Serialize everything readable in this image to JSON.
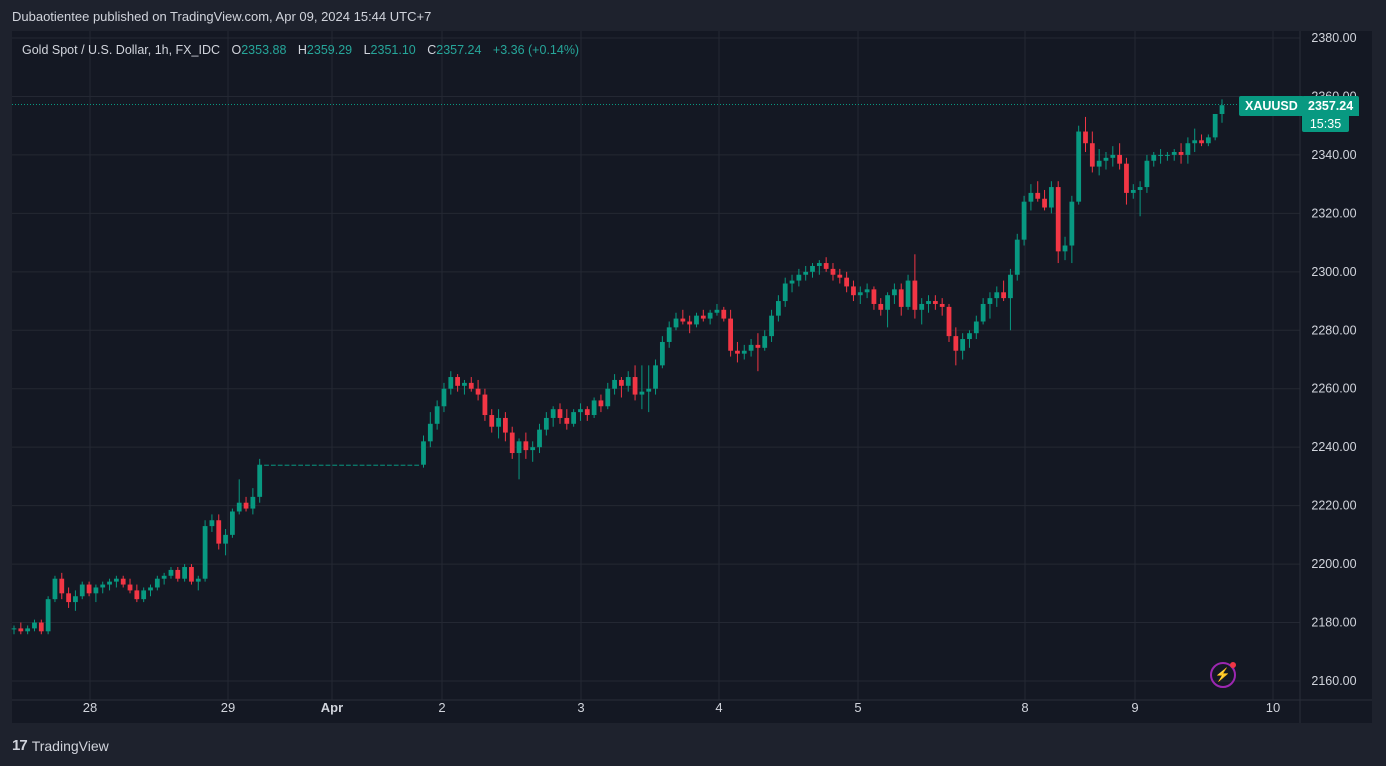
{
  "header": {
    "publish_line": "Dubaotientee published on TradingView.com, Apr 09, 2024 15:44 UTC+7"
  },
  "legend": {
    "symbol_line": "Gold Spot / U.S. Dollar, 1h, FX_IDC",
    "o_label": "O",
    "o_value": "2353.88",
    "h_label": "H",
    "h_value": "2359.29",
    "l_label": "L",
    "l_value": "2351.10",
    "c_label": "C",
    "c_value": "2357.24",
    "change": "+3.36 (+0.14%)"
  },
  "price_badge": {
    "ticker": "XAUUSD",
    "price": "2357.24",
    "countdown": "15:35"
  },
  "footer": {
    "logo": "17",
    "brand": "TradingView"
  },
  "icons": {
    "alert": "lightning-bolt-icon",
    "logo": "tradingview-logo-icon"
  },
  "colors": {
    "background": "#1e222d",
    "pane": "#141823",
    "up": "#089981",
    "down": "#f23645",
    "grid": "#242833",
    "text": "#d1d4dc"
  },
  "chart_data": {
    "type": "candlestick",
    "title": "Gold Spot / U.S. Dollar, 1h, FX_IDC",
    "xlabel": "",
    "ylabel": "",
    "ylim": [
      2155,
      2385
    ],
    "y_ticks": [
      "2160.00",
      "2180.00",
      "2200.00",
      "2220.00",
      "2240.00",
      "2260.00",
      "2280.00",
      "2300.00",
      "2320.00",
      "2340.00",
      "2360.00",
      "2380.00"
    ],
    "x_ticks": [
      "28",
      "29",
      "Apr",
      "2",
      "3",
      "4",
      "5",
      "8",
      "9",
      "10"
    ],
    "grid": true,
    "last_price": 2357.24,
    "series": [
      {
        "name": "XAUUSD",
        "ohlc": [
          [
            2178,
            2179,
            2176,
            2178
          ],
          [
            2178,
            2180,
            2176,
            2177
          ],
          [
            2177,
            2179,
            2176,
            2178
          ],
          [
            2178,
            2181,
            2177,
            2180
          ],
          [
            2180,
            2181,
            2176,
            2177
          ],
          [
            2177,
            2189,
            2176,
            2188
          ],
          [
            2188,
            2196,
            2187,
            2195
          ],
          [
            2195,
            2197,
            2188,
            2190
          ],
          [
            2190,
            2192,
            2185,
            2187
          ],
          [
            2187,
            2191,
            2184,
            2189
          ],
          [
            2189,
            2194,
            2188,
            2193
          ],
          [
            2193,
            2194,
            2189,
            2190
          ],
          [
            2190,
            2193,
            2187,
            2192
          ],
          [
            2192,
            2194,
            2190,
            2193
          ],
          [
            2193,
            2195,
            2191,
            2194
          ],
          [
            2194,
            2196,
            2192,
            2195
          ],
          [
            2195,
            2196,
            2192,
            2193
          ],
          [
            2193,
            2195,
            2190,
            2191
          ],
          [
            2191,
            2193,
            2187,
            2188
          ],
          [
            2188,
            2192,
            2187,
            2191
          ],
          [
            2191,
            2193,
            2189,
            2192
          ],
          [
            2192,
            2196,
            2191,
            2195
          ],
          [
            2195,
            2197,
            2193,
            2196
          ],
          [
            2196,
            2199,
            2195,
            2198
          ],
          [
            2198,
            2199,
            2194,
            2195
          ],
          [
            2195,
            2200,
            2194,
            2199
          ],
          [
            2199,
            2200,
            2193,
            2194
          ],
          [
            2194,
            2196,
            2191,
            2195
          ],
          [
            2195,
            2215,
            2194,
            2213
          ],
          [
            2213,
            2217,
            2211,
            2215
          ],
          [
            2215,
            2217,
            2205,
            2207
          ],
          [
            2207,
            2212,
            2203,
            2210
          ],
          [
            2210,
            2219,
            2209,
            2218
          ],
          [
            2218,
            2229,
            2217,
            2221
          ],
          [
            2221,
            2223,
            2218,
            2219
          ],
          [
            2219,
            2226,
            2217,
            2223
          ],
          [
            2223,
            2236,
            2221,
            2234
          ],
          [
            2234,
            2234,
            2234,
            2234
          ],
          [
            2234,
            2234,
            2234,
            2234
          ],
          [
            2234,
            2234,
            2234,
            2234
          ],
          [
            2234,
            2234,
            2234,
            2234
          ],
          [
            2234,
            2234,
            2234,
            2234
          ],
          [
            2234,
            2234,
            2234,
            2234
          ],
          [
            2234,
            2234,
            2234,
            2234
          ],
          [
            2234,
            2234,
            2234,
            2234
          ],
          [
            2234,
            2234,
            2234,
            2234
          ],
          [
            2234,
            2234,
            2234,
            2234
          ],
          [
            2234,
            2234,
            2234,
            2234
          ],
          [
            2234,
            2234,
            2234,
            2234
          ],
          [
            2234,
            2234,
            2234,
            2234
          ],
          [
            2234,
            2234,
            2234,
            2234
          ],
          [
            2234,
            2234,
            2234,
            2234
          ],
          [
            2234,
            2234,
            2234,
            2234
          ],
          [
            2234,
            2234,
            2234,
            2234
          ],
          [
            2234,
            2234,
            2234,
            2234
          ],
          [
            2234,
            2234,
            2234,
            2234
          ],
          [
            2234,
            2234,
            2234,
            2234
          ],
          [
            2234,
            2234,
            2234,
            2234
          ],
          [
            2234,
            2234,
            2234,
            2234
          ],
          [
            2234,
            2234,
            2234,
            2234
          ],
          [
            2234,
            2244,
            2233,
            2242
          ],
          [
            2242,
            2252,
            2240,
            2248
          ],
          [
            2248,
            2256,
            2246,
            2254
          ],
          [
            2254,
            2262,
            2252,
            2260
          ],
          [
            2260,
            2266,
            2258,
            2264
          ],
          [
            2264,
            2265,
            2259,
            2261
          ],
          [
            2261,
            2263,
            2258,
            2262
          ],
          [
            2262,
            2264,
            2259,
            2260
          ],
          [
            2260,
            2263,
            2256,
            2258
          ],
          [
            2258,
            2260,
            2249,
            2251
          ],
          [
            2251,
            2253,
            2245,
            2247
          ],
          [
            2247,
            2253,
            2243,
            2250
          ],
          [
            2250,
            2252,
            2242,
            2245
          ],
          [
            2245,
            2247,
            2236,
            2238
          ],
          [
            2238,
            2243,
            2229,
            2242
          ],
          [
            2242,
            2245,
            2236,
            2239
          ],
          [
            2239,
            2242,
            2235,
            2240
          ],
          [
            2240,
            2248,
            2238,
            2246
          ],
          [
            2246,
            2252,
            2244,
            2250
          ],
          [
            2250,
            2254,
            2247,
            2253
          ],
          [
            2253,
            2255,
            2248,
            2250
          ],
          [
            2250,
            2253,
            2246,
            2248
          ],
          [
            2248,
            2253,
            2247,
            2252
          ],
          [
            2252,
            2255,
            2249,
            2253
          ],
          [
            2253,
            2254,
            2249,
            2251
          ],
          [
            2251,
            2257,
            2250,
            2256
          ],
          [
            2256,
            2258,
            2252,
            2254
          ],
          [
            2254,
            2262,
            2253,
            2260
          ],
          [
            2260,
            2265,
            2258,
            2263
          ],
          [
            2263,
            2264,
            2257,
            2261
          ],
          [
            2261,
            2266,
            2259,
            2264
          ],
          [
            2264,
            2268,
            2256,
            2258
          ],
          [
            2258,
            2268,
            2253,
            2259
          ],
          [
            2259,
            2268,
            2252,
            2260
          ],
          [
            2260,
            2270,
            2258,
            2268
          ],
          [
            2268,
            2278,
            2267,
            2276
          ],
          [
            2276,
            2283,
            2274,
            2281
          ],
          [
            2281,
            2286,
            2280,
            2284
          ],
          [
            2284,
            2287,
            2282,
            2283
          ],
          [
            2283,
            2285,
            2279,
            2282
          ],
          [
            2282,
            2286,
            2281,
            2285
          ],
          [
            2285,
            2287,
            2283,
            2284
          ],
          [
            2284,
            2287,
            2282,
            2286
          ],
          [
            2286,
            2289,
            2285,
            2287
          ],
          [
            2287,
            2288,
            2283,
            2284
          ],
          [
            2284,
            2287,
            2271,
            2273
          ],
          [
            2273,
            2276,
            2269,
            2272
          ],
          [
            2272,
            2275,
            2270,
            2273
          ],
          [
            2273,
            2277,
            2271,
            2275
          ],
          [
            2275,
            2279,
            2266,
            2274
          ],
          [
            2274,
            2280,
            2273,
            2278
          ],
          [
            2278,
            2287,
            2276,
            2285
          ],
          [
            2285,
            2292,
            2283,
            2290
          ],
          [
            2290,
            2298,
            2288,
            2296
          ],
          [
            2296,
            2299,
            2293,
            2297
          ],
          [
            2297,
            2301,
            2295,
            2299
          ],
          [
            2299,
            2302,
            2297,
            2300
          ],
          [
            2300,
            2303,
            2298,
            2302
          ],
          [
            2302,
            2304,
            2299,
            2303
          ],
          [
            2303,
            2305,
            2300,
            2301
          ],
          [
            2301,
            2303,
            2297,
            2299
          ],
          [
            2299,
            2301,
            2296,
            2298
          ],
          [
            2298,
            2300,
            2293,
            2295
          ],
          [
            2295,
            2297,
            2290,
            2292
          ],
          [
            2292,
            2295,
            2289,
            2293
          ],
          [
            2293,
            2296,
            2291,
            2294
          ],
          [
            2294,
            2295,
            2287,
            2289
          ],
          [
            2289,
            2291,
            2285,
            2287
          ],
          [
            2287,
            2293,
            2281,
            2292
          ],
          [
            2292,
            2296,
            2289,
            2294
          ],
          [
            2294,
            2296,
            2285,
            2288
          ],
          [
            2288,
            2299,
            2287,
            2297
          ],
          [
            2297,
            2306,
            2284,
            2287
          ],
          [
            2287,
            2291,
            2282,
            2289
          ],
          [
            2289,
            2292,
            2286,
            2290
          ],
          [
            2290,
            2292,
            2287,
            2289
          ],
          [
            2289,
            2291,
            2285,
            2288
          ],
          [
            2288,
            2289,
            2276,
            2278
          ],
          [
            2278,
            2281,
            2268,
            2273
          ],
          [
            2273,
            2279,
            2270,
            2277
          ],
          [
            2277,
            2280,
            2274,
            2279
          ],
          [
            2279,
            2285,
            2277,
            2283
          ],
          [
            2283,
            2291,
            2282,
            2289
          ],
          [
            2289,
            2293,
            2284,
            2291
          ],
          [
            2291,
            2295,
            2288,
            2293
          ],
          [
            2293,
            2297,
            2290,
            2291
          ],
          [
            2291,
            2301,
            2280,
            2299
          ],
          [
            2299,
            2313,
            2297,
            2311
          ],
          [
            2311,
            2326,
            2309,
            2324
          ],
          [
            2324,
            2330,
            2321,
            2327
          ],
          [
            2327,
            2331,
            2324,
            2325
          ],
          [
            2325,
            2328,
            2321,
            2322
          ],
          [
            2322,
            2331,
            2320,
            2329
          ],
          [
            2329,
            2331,
            2303,
            2307
          ],
          [
            2307,
            2312,
            2304,
            2309
          ],
          [
            2309,
            2326,
            2303,
            2324
          ],
          [
            2324,
            2350,
            2323,
            2348
          ],
          [
            2348,
            2353,
            2341,
            2344
          ],
          [
            2344,
            2348,
            2334,
            2336
          ],
          [
            2336,
            2342,
            2333,
            2338
          ],
          [
            2338,
            2341,
            2335,
            2339
          ],
          [
            2339,
            2343,
            2336,
            2340
          ],
          [
            2340,
            2344,
            2335,
            2337
          ],
          [
            2337,
            2339,
            2323,
            2327
          ],
          [
            2327,
            2330,
            2325,
            2328
          ],
          [
            2328,
            2331,
            2319,
            2329
          ],
          [
            2329,
            2340,
            2327,
            2338
          ],
          [
            2338,
            2341,
            2336,
            2340
          ],
          [
            2340,
            2342,
            2337,
            2340
          ],
          [
            2340,
            2341,
            2338,
            2340
          ],
          [
            2340,
            2342,
            2338,
            2341
          ],
          [
            2341,
            2344,
            2337,
            2340
          ],
          [
            2340,
            2346,
            2337,
            2344
          ],
          [
            2344,
            2349,
            2341,
            2345
          ],
          [
            2345,
            2347,
            2343,
            2344
          ],
          [
            2344,
            2347,
            2343,
            2346
          ],
          [
            2346,
            2354,
            2345,
            2354
          ],
          [
            2354,
            2359,
            2351,
            2357
          ]
        ]
      }
    ]
  }
}
